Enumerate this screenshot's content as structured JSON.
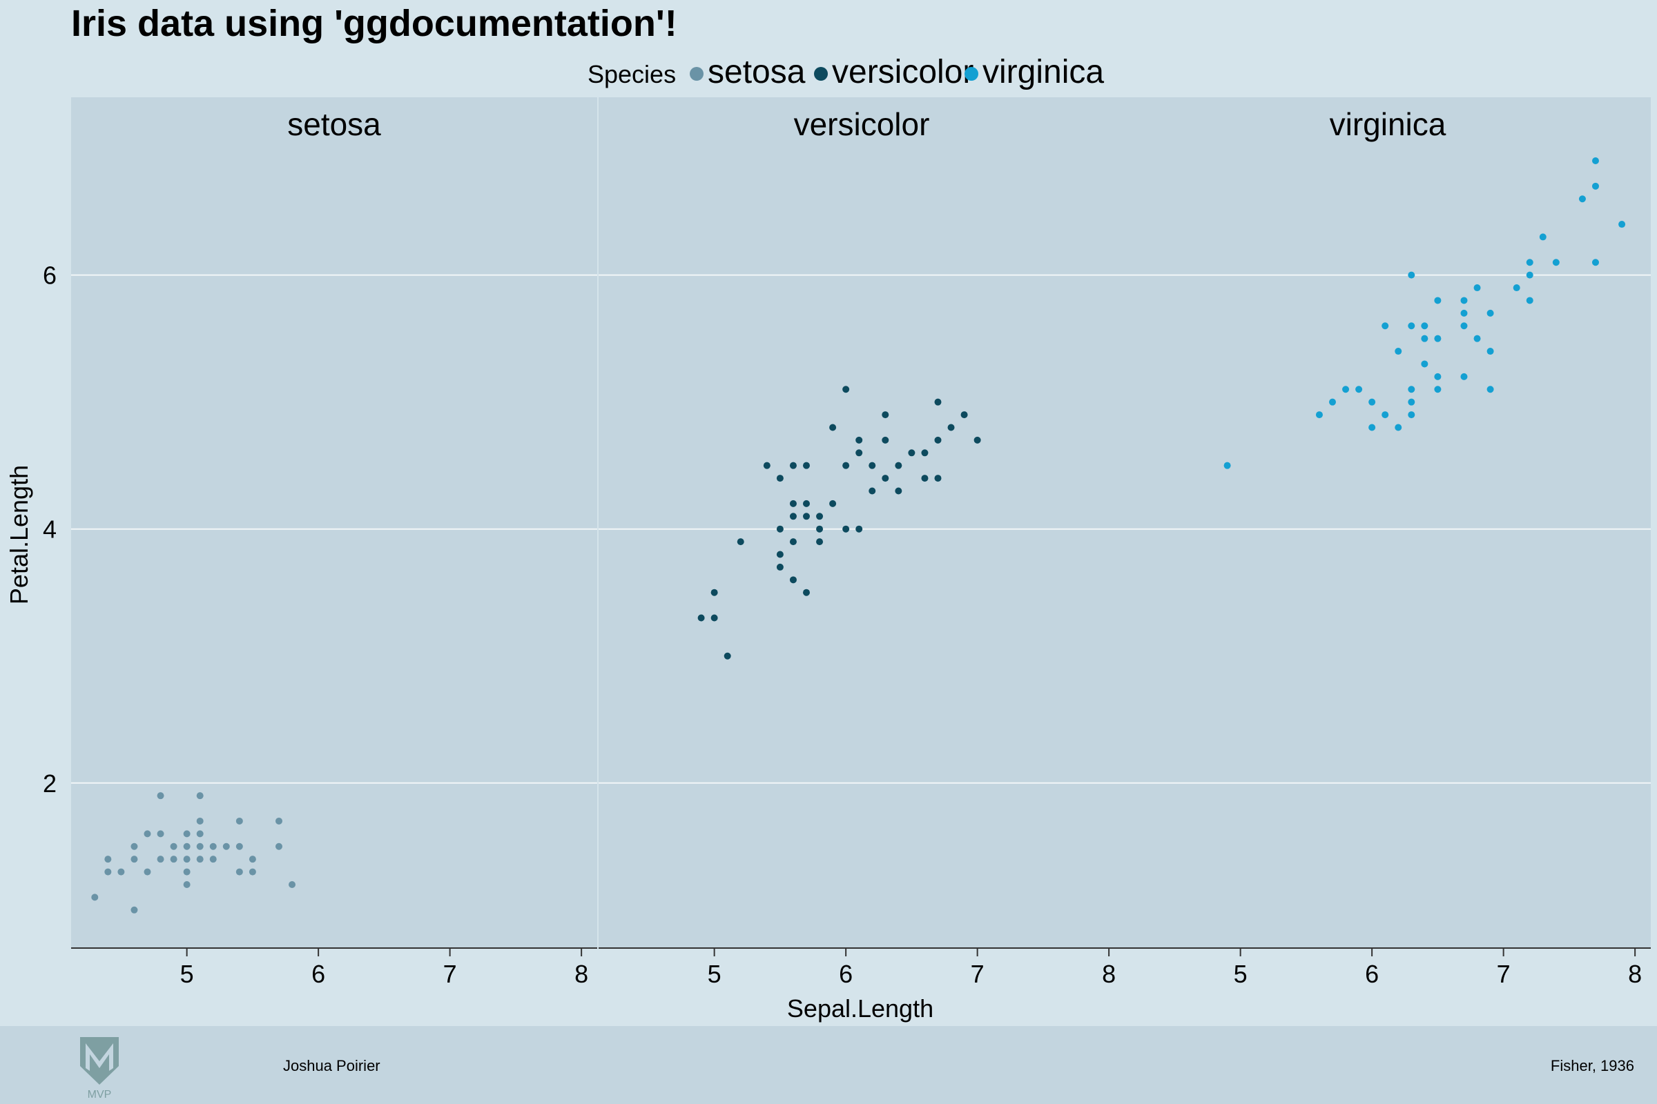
{
  "colors": {
    "background": "#d5e4eb",
    "panel": "#c3d5df",
    "grid": "#f2f6f8",
    "axis": "#333333",
    "text": "#000000",
    "footer": "#c3d5df",
    "logo": "#7e9fa2"
  },
  "footer": {
    "author": "Joshua Poirier",
    "source": "Fisher, 1936",
    "logo_text": "MVP"
  },
  "chart_data": {
    "type": "scatter",
    "title": "Iris data using 'ggdocumentation'!",
    "xlabel": "Sepal.Length",
    "ylabel": "Petal.Length",
    "xlim": [
      4.12,
      8.12
    ],
    "ylim": [
      0.7,
      7.4
    ],
    "x_ticks": [
      5,
      6,
      7,
      8
    ],
    "y_ticks": [
      2,
      4,
      6
    ],
    "grid": "horizontal",
    "legend": {
      "title": "Species",
      "placement": "top-center",
      "entries": [
        {
          "label": "setosa",
          "color": "#6a93a6"
        },
        {
          "label": "versicolor",
          "color": "#0d4a5e"
        },
        {
          "label": "virginica",
          "color": "#14a0d2"
        }
      ]
    },
    "facets": [
      {
        "name": "setosa",
        "color": "#6a93a6",
        "points": [
          [
            4.3,
            1.1
          ],
          [
            4.4,
            1.3
          ],
          [
            4.4,
            1.4
          ],
          [
            4.5,
            1.3
          ],
          [
            4.6,
            1.0
          ],
          [
            4.6,
            1.4
          ],
          [
            4.6,
            1.5
          ],
          [
            4.7,
            1.3
          ],
          [
            4.7,
            1.6
          ],
          [
            4.8,
            1.4
          ],
          [
            4.8,
            1.6
          ],
          [
            4.8,
            1.9
          ],
          [
            4.9,
            1.4
          ],
          [
            4.9,
            1.5
          ],
          [
            5.0,
            1.2
          ],
          [
            5.0,
            1.3
          ],
          [
            5.0,
            1.4
          ],
          [
            5.0,
            1.5
          ],
          [
            5.0,
            1.6
          ],
          [
            5.1,
            1.4
          ],
          [
            5.1,
            1.5
          ],
          [
            5.1,
            1.6
          ],
          [
            5.1,
            1.7
          ],
          [
            5.1,
            1.9
          ],
          [
            5.2,
            1.4
          ],
          [
            5.2,
            1.5
          ],
          [
            5.3,
            1.5
          ],
          [
            5.4,
            1.3
          ],
          [
            5.4,
            1.5
          ],
          [
            5.4,
            1.7
          ],
          [
            5.5,
            1.3
          ],
          [
            5.5,
            1.4
          ],
          [
            5.7,
            1.5
          ],
          [
            5.7,
            1.7
          ],
          [
            5.8,
            1.2
          ]
        ]
      },
      {
        "name": "versicolor",
        "color": "#0d4a5e",
        "points": [
          [
            4.9,
            3.3
          ],
          [
            5.0,
            3.3
          ],
          [
            5.0,
            3.5
          ],
          [
            5.1,
            3.0
          ],
          [
            5.2,
            3.9
          ],
          [
            5.4,
            4.5
          ],
          [
            5.5,
            3.7
          ],
          [
            5.5,
            3.8
          ],
          [
            5.5,
            4.0
          ],
          [
            5.5,
            4.4
          ],
          [
            5.6,
            3.6
          ],
          [
            5.6,
            3.9
          ],
          [
            5.6,
            4.1
          ],
          [
            5.6,
            4.2
          ],
          [
            5.6,
            4.5
          ],
          [
            5.7,
            3.5
          ],
          [
            5.7,
            4.1
          ],
          [
            5.7,
            4.2
          ],
          [
            5.7,
            4.5
          ],
          [
            5.8,
            3.9
          ],
          [
            5.8,
            4.0
          ],
          [
            5.8,
            4.1
          ],
          [
            5.9,
            4.2
          ],
          [
            5.9,
            4.8
          ],
          [
            6.0,
            4.0
          ],
          [
            6.0,
            4.5
          ],
          [
            6.0,
            5.1
          ],
          [
            6.1,
            4.0
          ],
          [
            6.1,
            4.6
          ],
          [
            6.1,
            4.7
          ],
          [
            6.2,
            4.3
          ],
          [
            6.2,
            4.5
          ],
          [
            6.3,
            4.4
          ],
          [
            6.3,
            4.7
          ],
          [
            6.3,
            4.9
          ],
          [
            6.4,
            4.3
          ],
          [
            6.4,
            4.5
          ],
          [
            6.5,
            4.6
          ],
          [
            6.6,
            4.4
          ],
          [
            6.6,
            4.6
          ],
          [
            6.7,
            4.4
          ],
          [
            6.7,
            4.7
          ],
          [
            6.7,
            5.0
          ],
          [
            6.8,
            4.8
          ],
          [
            6.9,
            4.9
          ],
          [
            7.0,
            4.7
          ]
        ]
      },
      {
        "name": "virginica",
        "color": "#14a0d2",
        "points": [
          [
            4.9,
            4.5
          ],
          [
            5.6,
            4.9
          ],
          [
            5.7,
            5.0
          ],
          [
            5.8,
            5.1
          ],
          [
            5.9,
            5.1
          ],
          [
            6.0,
            4.8
          ],
          [
            6.0,
            5.0
          ],
          [
            6.1,
            4.9
          ],
          [
            6.1,
            5.6
          ],
          [
            6.2,
            4.8
          ],
          [
            6.2,
            5.4
          ],
          [
            6.3,
            4.9
          ],
          [
            6.3,
            5.0
          ],
          [
            6.3,
            5.1
          ],
          [
            6.3,
            5.6
          ],
          [
            6.3,
            6.0
          ],
          [
            6.4,
            5.3
          ],
          [
            6.4,
            5.5
          ],
          [
            6.4,
            5.6
          ],
          [
            6.5,
            5.1
          ],
          [
            6.5,
            5.2
          ],
          [
            6.5,
            5.5
          ],
          [
            6.5,
            5.8
          ],
          [
            6.7,
            5.2
          ],
          [
            6.7,
            5.6
          ],
          [
            6.7,
            5.7
          ],
          [
            6.7,
            5.8
          ],
          [
            6.8,
            5.5
          ],
          [
            6.8,
            5.9
          ],
          [
            6.9,
            5.1
          ],
          [
            6.9,
            5.4
          ],
          [
            6.9,
            5.7
          ],
          [
            7.1,
            5.9
          ],
          [
            7.2,
            5.8
          ],
          [
            7.2,
            6.0
          ],
          [
            7.2,
            6.1
          ],
          [
            7.3,
            6.3
          ],
          [
            7.4,
            6.1
          ],
          [
            7.6,
            6.6
          ],
          [
            7.7,
            6.1
          ],
          [
            7.7,
            6.7
          ],
          [
            7.7,
            6.9
          ],
          [
            7.9,
            6.4
          ]
        ]
      }
    ]
  }
}
